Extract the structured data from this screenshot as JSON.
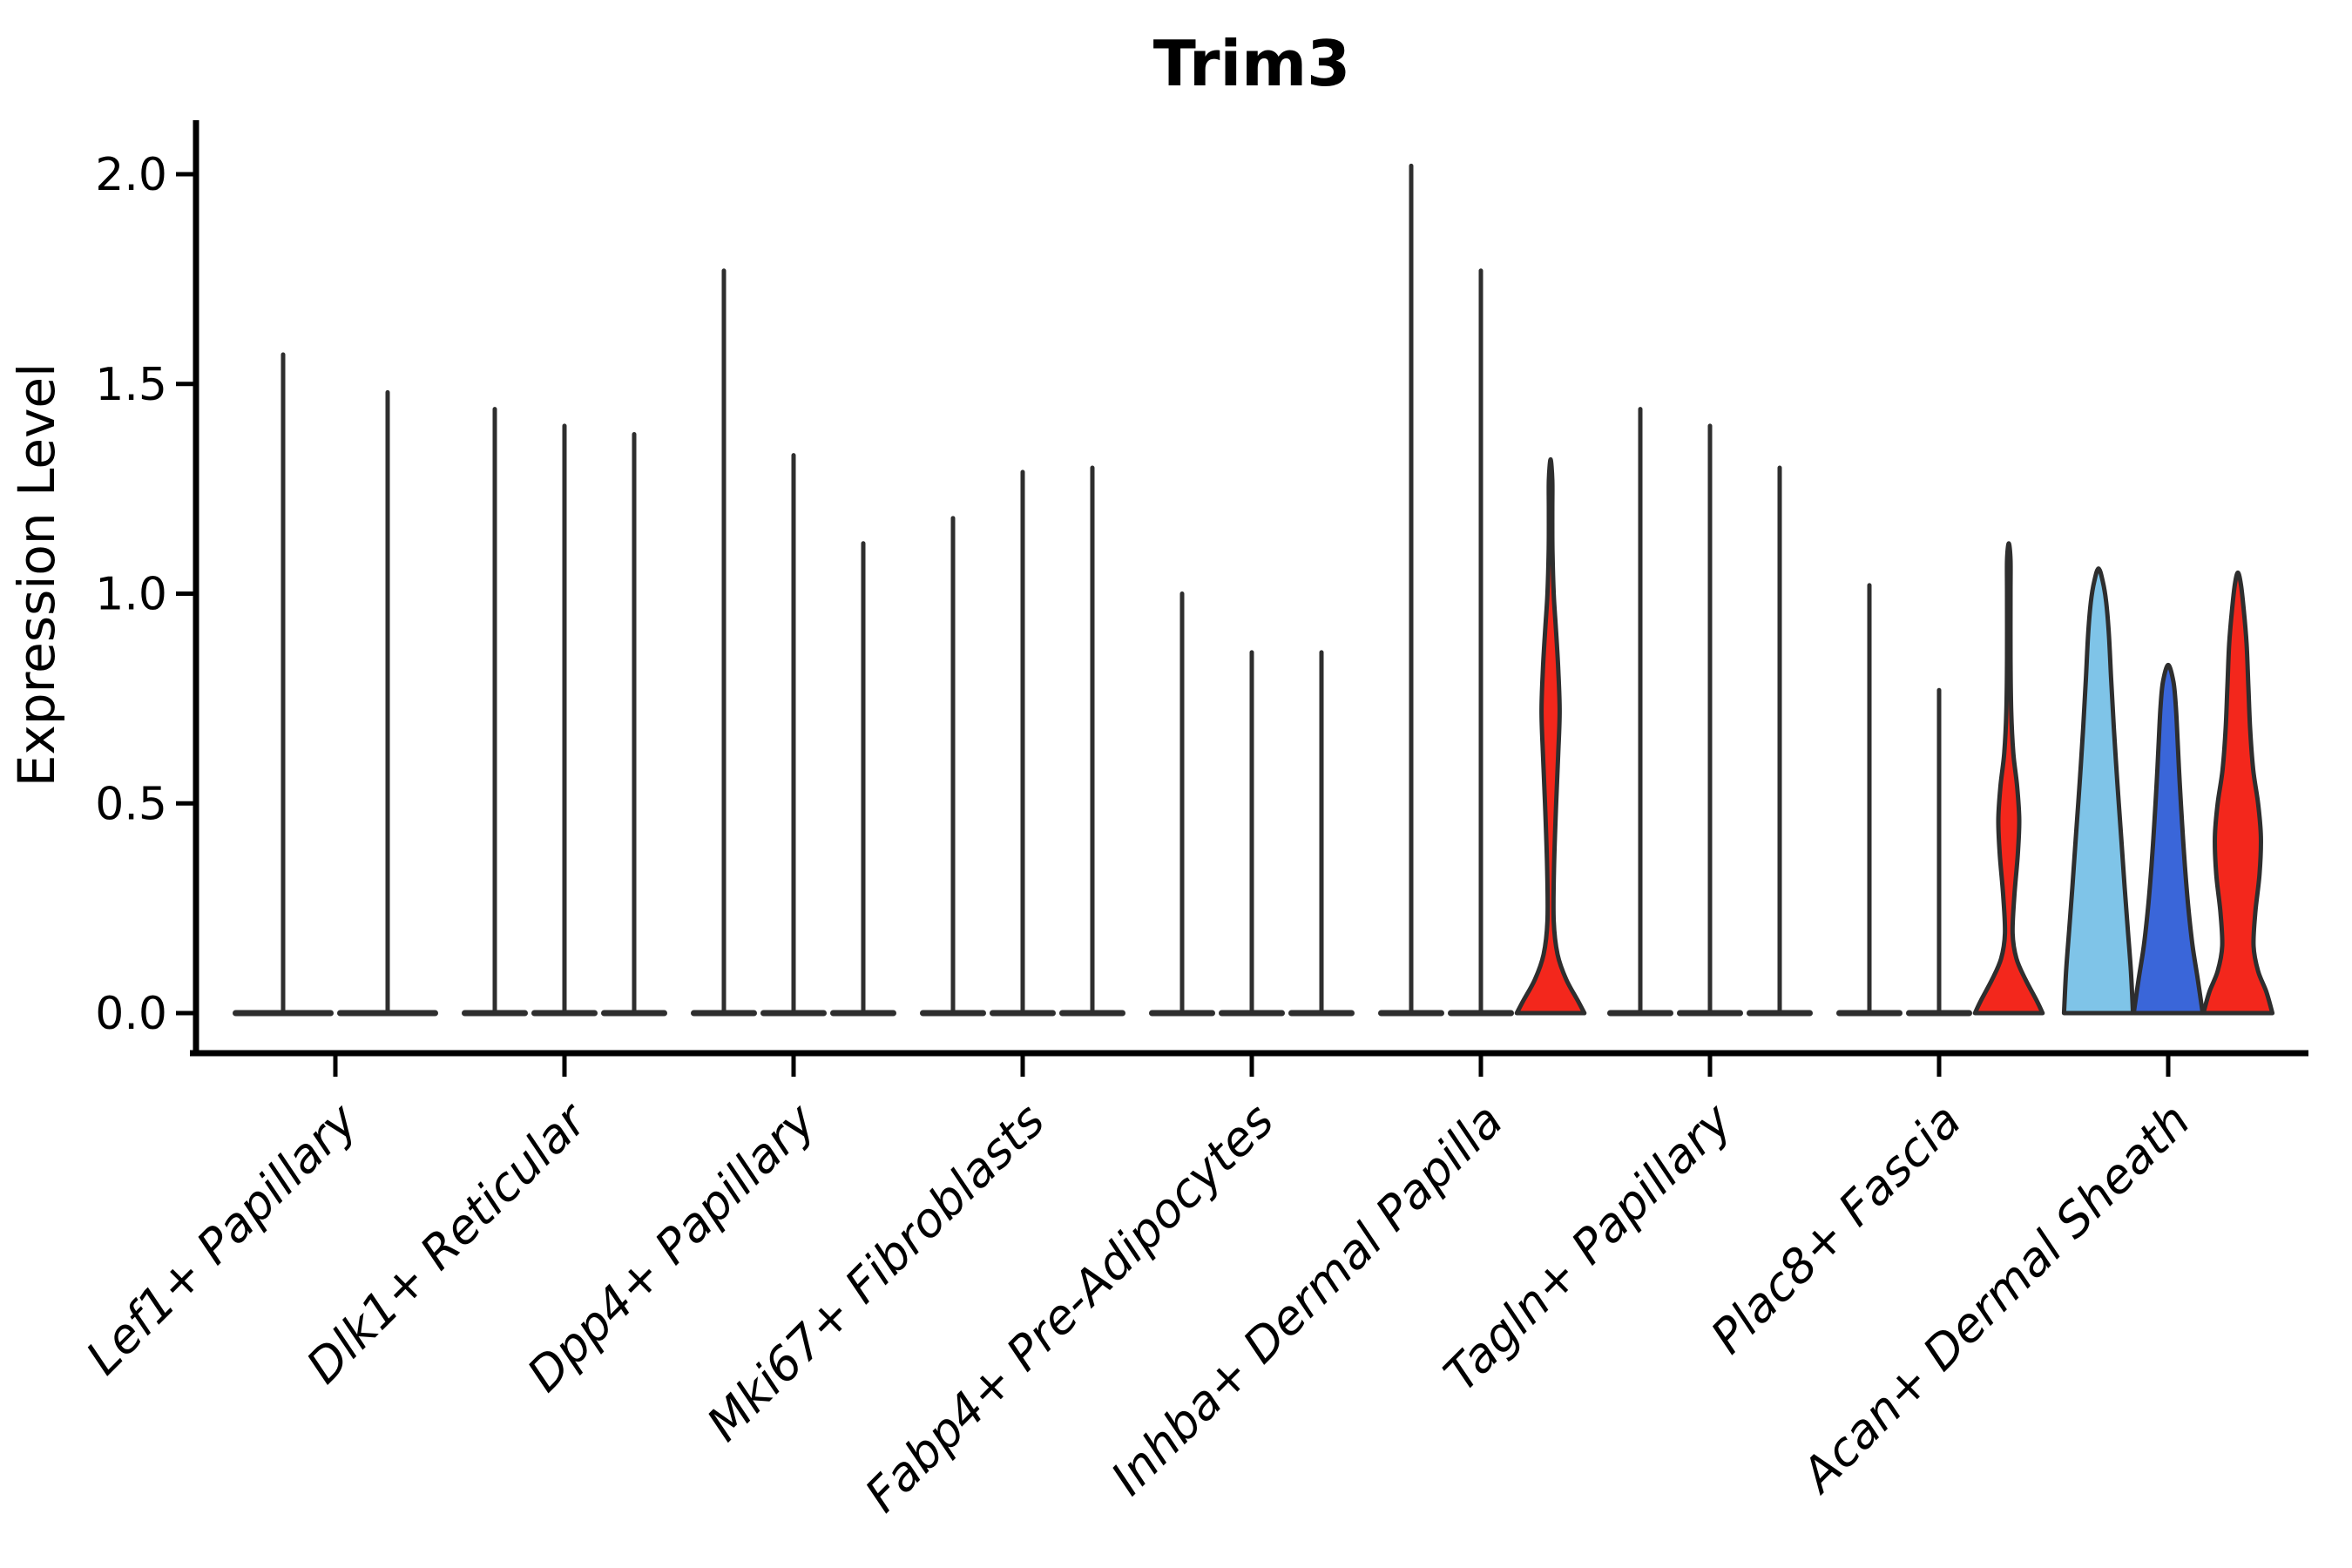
{
  "chart_data": {
    "type": "violin",
    "title": "Trim3",
    "ylabel": "Expression Level",
    "xlabel": "",
    "yticks": [
      "0.0",
      "0.5",
      "1.0",
      "1.5",
      "2.0"
    ],
    "ytick_values": [
      0.0,
      0.5,
      1.0,
      1.5,
      2.0
    ],
    "ylim": [
      -0.095,
      2.13
    ],
    "grid": false,
    "legend_position": "none",
    "colors": {
      "outline": "#2e2e2e",
      "axis": "#000000",
      "red": "#f3271c",
      "blue": "#3a66d9",
      "lightblue": "#7fc4e8",
      "background": "#ffffff"
    },
    "groups": [
      {
        "label": "Lef1+ Papillary",
        "violins": [
          {
            "max": 1.57,
            "fill": null
          },
          {
            "max": 1.48,
            "fill": null
          }
        ]
      },
      {
        "label": "Dlk1+ Reticular",
        "violins": [
          {
            "max": 1.44,
            "fill": null
          },
          {
            "max": 1.4,
            "fill": null
          },
          {
            "max": 1.38,
            "fill": null
          }
        ]
      },
      {
        "label": "Dpp4+ Papillary",
        "violins": [
          {
            "max": 1.77,
            "fill": null
          },
          {
            "max": 1.33,
            "fill": null
          },
          {
            "max": 1.12,
            "fill": null
          }
        ]
      },
      {
        "label": "Mki67+ Fibroblasts",
        "violins": [
          {
            "max": 1.18,
            "fill": null
          },
          {
            "max": 1.29,
            "fill": null
          },
          {
            "max": 1.3,
            "fill": null
          }
        ]
      },
      {
        "label": "Fabp4+ Pre-Adipocytes",
        "violins": [
          {
            "max": 1.0,
            "fill": null
          },
          {
            "max": 0.86,
            "fill": null
          },
          {
            "max": 0.86,
            "fill": null
          }
        ]
      },
      {
        "label": "Inhba+ Dermal Papilla",
        "violins": [
          {
            "max": 2.02,
            "fill": null
          },
          {
            "max": 1.77,
            "fill": null
          },
          {
            "max": 1.32,
            "fill": "red",
            "profile": [
              [
                0,
                0.97
              ],
              [
                0.03,
                0.78
              ],
              [
                0.08,
                0.45
              ],
              [
                0.14,
                0.2
              ],
              [
                0.22,
                0.09
              ],
              [
                0.35,
                0.1
              ],
              [
                0.5,
                0.16
              ],
              [
                0.62,
                0.22
              ],
              [
                0.72,
                0.26
              ],
              [
                0.82,
                0.22
              ],
              [
                0.92,
                0.15
              ],
              [
                1.0,
                0.09
              ],
              [
                1.1,
                0.055
              ],
              [
                1.2,
                0.05
              ],
              [
                1.27,
                0.05
              ],
              [
                1.32,
                0
              ]
            ]
          }
        ]
      },
      {
        "label": "Tagln+ Papillary",
        "violins": [
          {
            "max": 1.44,
            "fill": null
          },
          {
            "max": 1.4,
            "fill": null
          },
          {
            "max": 1.3,
            "fill": null
          }
        ]
      },
      {
        "label": "Plac8+ Fascia",
        "violins": [
          {
            "max": 1.02,
            "fill": null
          },
          {
            "max": 0.77,
            "fill": null
          },
          {
            "max": 1.12,
            "fill": "red",
            "profile": [
              [
                0,
                0.97
              ],
              [
                0.03,
                0.8
              ],
              [
                0.08,
                0.48
              ],
              [
                0.13,
                0.22
              ],
              [
                0.19,
                0.11
              ],
              [
                0.28,
                0.16
              ],
              [
                0.38,
                0.26
              ],
              [
                0.46,
                0.3
              ],
              [
                0.54,
                0.24
              ],
              [
                0.62,
                0.13
              ],
              [
                0.72,
                0.07
              ],
              [
                0.85,
                0.05
              ],
              [
                1.0,
                0.05
              ],
              [
                1.08,
                0.05
              ],
              [
                1.12,
                0
              ]
            ]
          }
        ]
      },
      {
        "label": "Acan+ Dermal Sheath",
        "violins": [
          {
            "max": 1.06,
            "fill": "lightblue",
            "profile": [
              [
                0,
                0.99
              ],
              [
                0.1,
                0.93
              ],
              [
                0.2,
                0.84
              ],
              [
                0.3,
                0.75
              ],
              [
                0.42,
                0.65
              ],
              [
                0.55,
                0.54
              ],
              [
                0.68,
                0.44
              ],
              [
                0.8,
                0.36
              ],
              [
                0.9,
                0.3
              ],
              [
                0.98,
                0.22
              ],
              [
                1.03,
                0.12
              ],
              [
                1.06,
                0
              ]
            ]
          },
          {
            "max": 0.83,
            "fill": "blue",
            "profile": [
              [
                0,
                0.99
              ],
              [
                0.08,
                0.85
              ],
              [
                0.16,
                0.7
              ],
              [
                0.25,
                0.58
              ],
              [
                0.35,
                0.48
              ],
              [
                0.45,
                0.4
              ],
              [
                0.55,
                0.33
              ],
              [
                0.65,
                0.27
              ],
              [
                0.73,
                0.22
              ],
              [
                0.79,
                0.15
              ],
              [
                0.83,
                0
              ]
            ]
          },
          {
            "max": 1.05,
            "fill": "red",
            "profile": [
              [
                0,
                0.99
              ],
              [
                0.05,
                0.82
              ],
              [
                0.1,
                0.58
              ],
              [
                0.16,
                0.45
              ],
              [
                0.24,
                0.5
              ],
              [
                0.33,
                0.62
              ],
              [
                0.42,
                0.66
              ],
              [
                0.5,
                0.58
              ],
              [
                0.58,
                0.44
              ],
              [
                0.68,
                0.35
              ],
              [
                0.78,
                0.3
              ],
              [
                0.88,
                0.25
              ],
              [
                0.96,
                0.17
              ],
              [
                1.02,
                0.09
              ],
              [
                1.05,
                0
              ]
            ]
          }
        ]
      }
    ]
  }
}
